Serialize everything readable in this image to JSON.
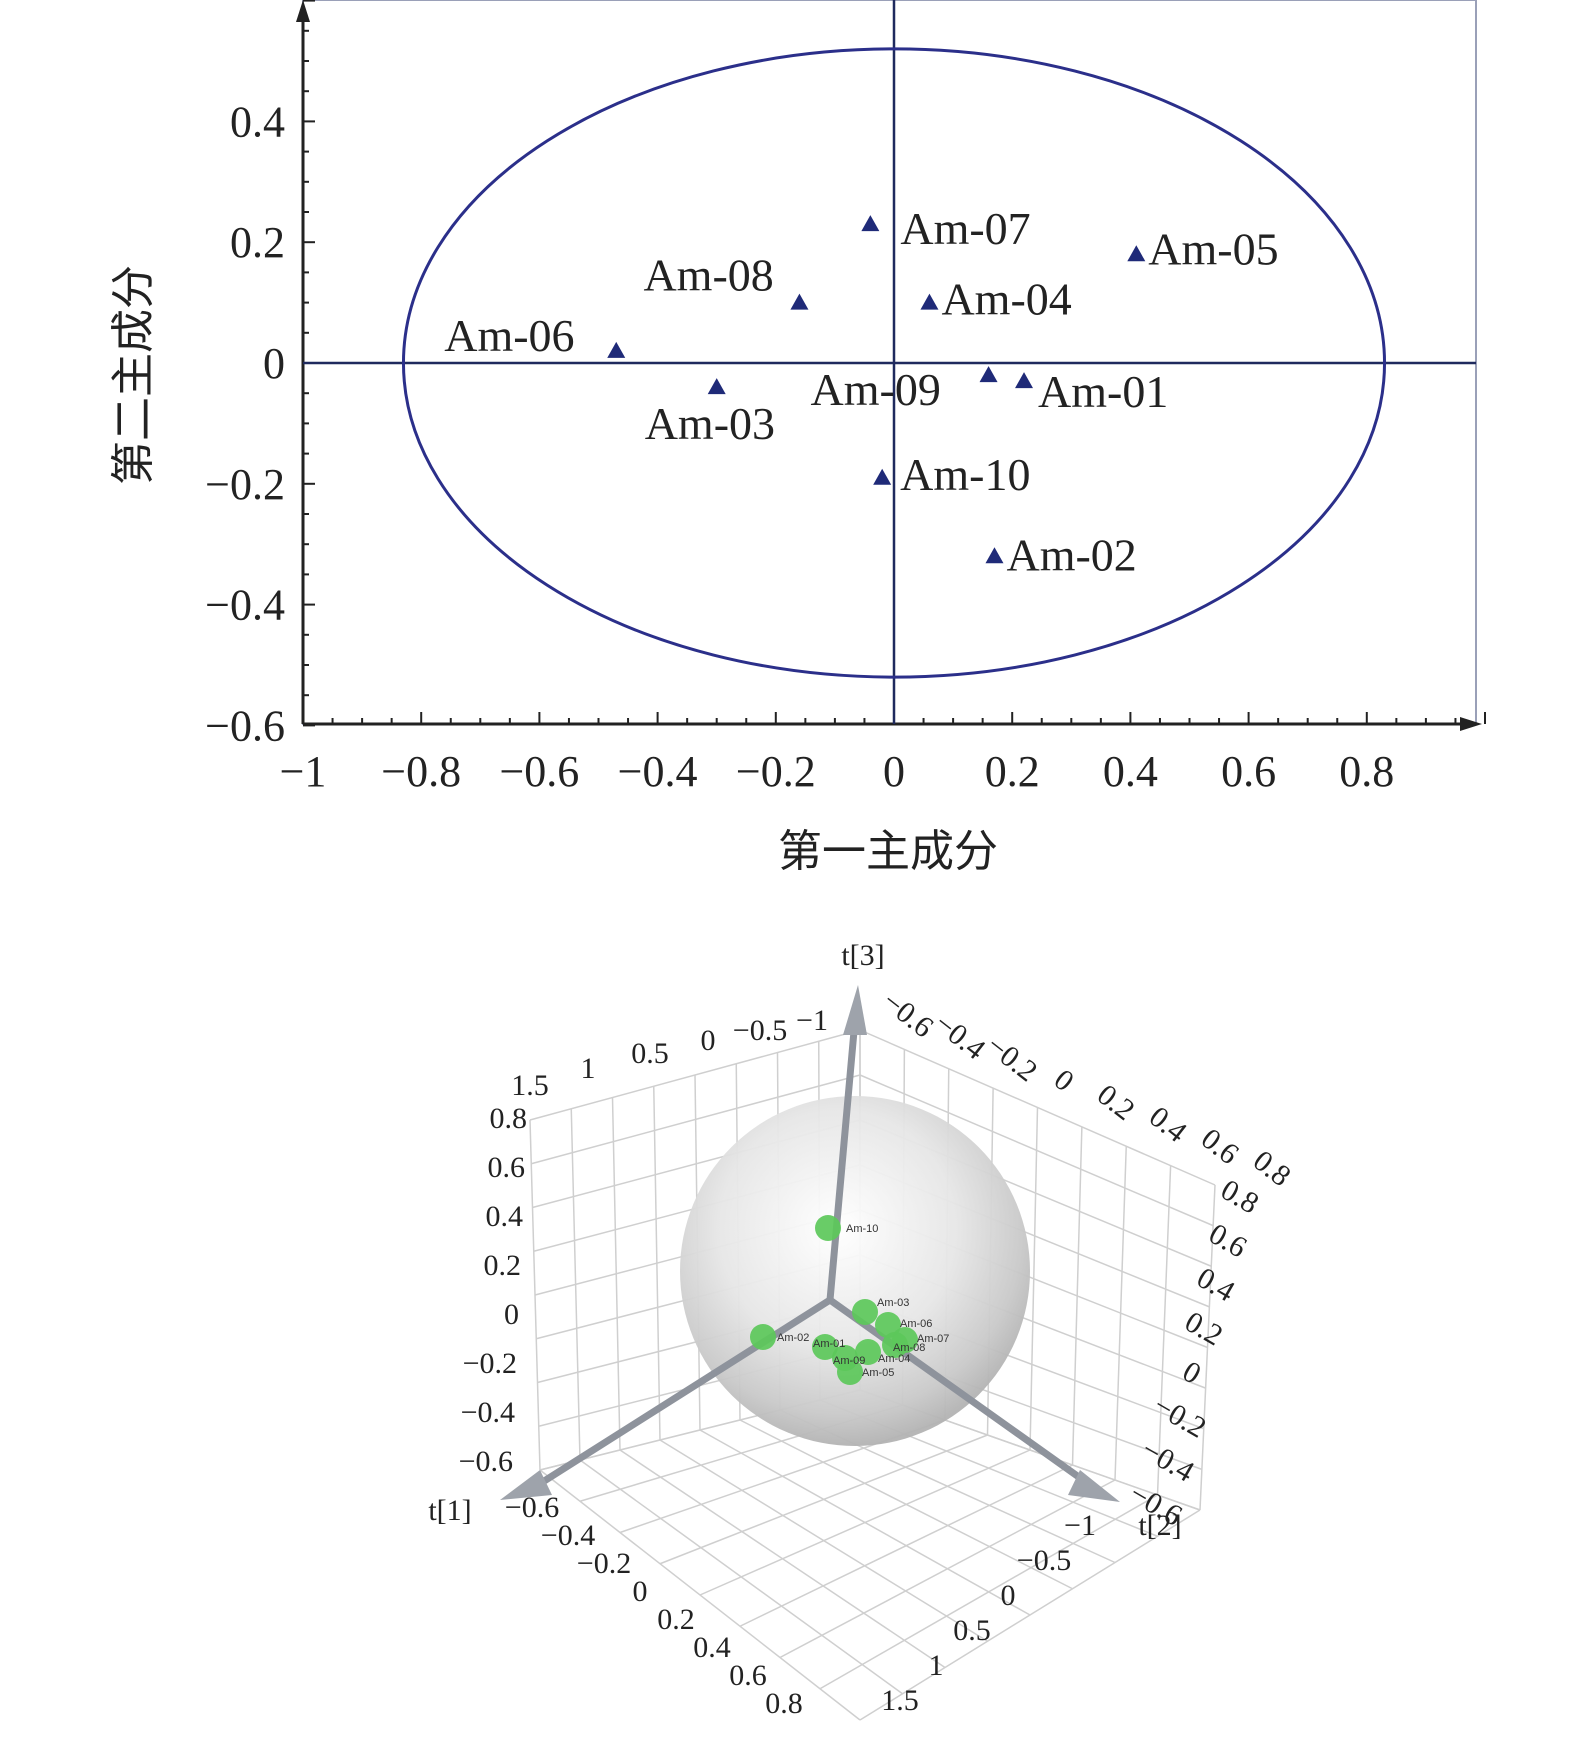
{
  "chart_data": [
    {
      "type": "scatter",
      "xlabel": "第一主成分",
      "ylabel": "第二主成分",
      "xlim": [
        -1,
        1
      ],
      "ylim": [
        -0.6,
        0.6
      ],
      "xticks": [
        "−1",
        "−0.8",
        "−0.6",
        "−0.4",
        "−0.2",
        "0",
        "0.2",
        "0.4",
        "0.6",
        "0.8"
      ],
      "yticks": [
        "0.4",
        "0.2",
        "0",
        "−0.2",
        "−0.4",
        "−0.6"
      ],
      "confidence_ellipse": {
        "rx": 0.83,
        "ry": 0.52
      },
      "marker": "triangle",
      "marker_color": "#1f2a78",
      "ellipse_color": "#2b2f8a",
      "points": [
        {
          "label": "Am-01",
          "x": 0.22,
          "y": -0.03
        },
        {
          "label": "Am-02",
          "x": 0.17,
          "y": -0.32
        },
        {
          "label": "Am-03",
          "x": -0.3,
          "y": -0.04
        },
        {
          "label": "Am-04",
          "x": 0.06,
          "y": 0.1
        },
        {
          "label": "Am-05",
          "x": 0.41,
          "y": 0.18
        },
        {
          "label": "Am-06",
          "x": -0.47,
          "y": 0.02
        },
        {
          "label": "Am-07",
          "x": -0.04,
          "y": 0.23
        },
        {
          "label": "Am-08",
          "x": -0.16,
          "y": 0.1
        },
        {
          "label": "Am-09",
          "x": 0.16,
          "y": -0.02
        },
        {
          "label": "Am-10",
          "x": -0.02,
          "y": -0.19
        }
      ]
    },
    {
      "type": "scatter3d",
      "axes": [
        "t[1]",
        "t[2]",
        "t[3]"
      ],
      "t1_ticks": [
        "−0.6",
        "−0.4",
        "−0.2",
        "0",
        "0.2",
        "0.4",
        "0.6",
        "0.8"
      ],
      "t2_ticks": [
        "−1",
        "−0.5",
        "0",
        "0.5",
        "1",
        "1.5"
      ],
      "t3_ticks": [
        "0.8",
        "0.6",
        "0.4",
        "0.2",
        "0",
        "−0.2",
        "−0.4",
        "−0.6"
      ],
      "back_t2_ticks": [
        "1.5",
        "1",
        "0.5",
        "0",
        "−0.5",
        "−1"
      ],
      "back_t1_ticks": [
        "−0.6",
        "−0.4",
        "−0.2",
        "0",
        "0.2",
        "0.4",
        "0.6",
        "0.8"
      ],
      "right_t3_ticks": [
        "0.8",
        "0.6",
        "0.4",
        "0.2",
        "0",
        "−0.2",
        "−0.4",
        "−0.6"
      ],
      "point_color": "#5cc85a",
      "points": [
        {
          "label": "Am-10"
        },
        {
          "label": "Am-02"
        },
        {
          "label": "Am-03"
        },
        {
          "label": "Am-06"
        },
        {
          "label": "Am-07"
        },
        {
          "label": "Am-08"
        },
        {
          "label": "Am-04"
        },
        {
          "label": "Am-01"
        },
        {
          "label": "Am-09"
        },
        {
          "label": "Am-05"
        }
      ]
    }
  ]
}
